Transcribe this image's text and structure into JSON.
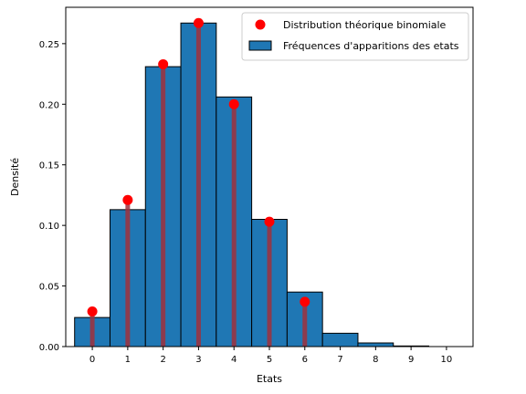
{
  "chart_data": {
    "type": "bar",
    "title": "",
    "xlabel": "Etats",
    "ylabel": "Densité",
    "xlim": [
      -0.75,
      10.75
    ],
    "ylim": [
      0,
      0.28
    ],
    "x_ticks": [
      "0",
      "1",
      "2",
      "3",
      "4",
      "5",
      "6",
      "7",
      "8",
      "9",
      "10"
    ],
    "y_ticks": [
      "0.00",
      "0.05",
      "0.10",
      "0.15",
      "0.20",
      "0.25"
    ],
    "y_tick_values": [
      0,
      0.05,
      0.1,
      0.15,
      0.2,
      0.25
    ],
    "grid": false,
    "legend_position": "top-right",
    "series": [
      {
        "name": "Fréquences d'apparitions des etats",
        "type": "bar",
        "color": "#1f77b4",
        "edgecolor": "#000000",
        "x": [
          0,
          1,
          2,
          3,
          4,
          5,
          6,
          7,
          8,
          9,
          10
        ],
        "values": [
          0.024,
          0.113,
          0.231,
          0.267,
          0.206,
          0.105,
          0.045,
          0.011,
          0.003,
          0.0005,
          0.0
        ]
      },
      {
        "name": "Distribution théorique binomiale",
        "type": "stem",
        "color": "#ff0000",
        "stem_color": "#a0303c",
        "x": [
          0,
          1,
          2,
          3,
          4,
          5,
          6
        ],
        "values": [
          0.029,
          0.121,
          0.233,
          0.267,
          0.2,
          0.103,
          0.037
        ]
      }
    ]
  }
}
